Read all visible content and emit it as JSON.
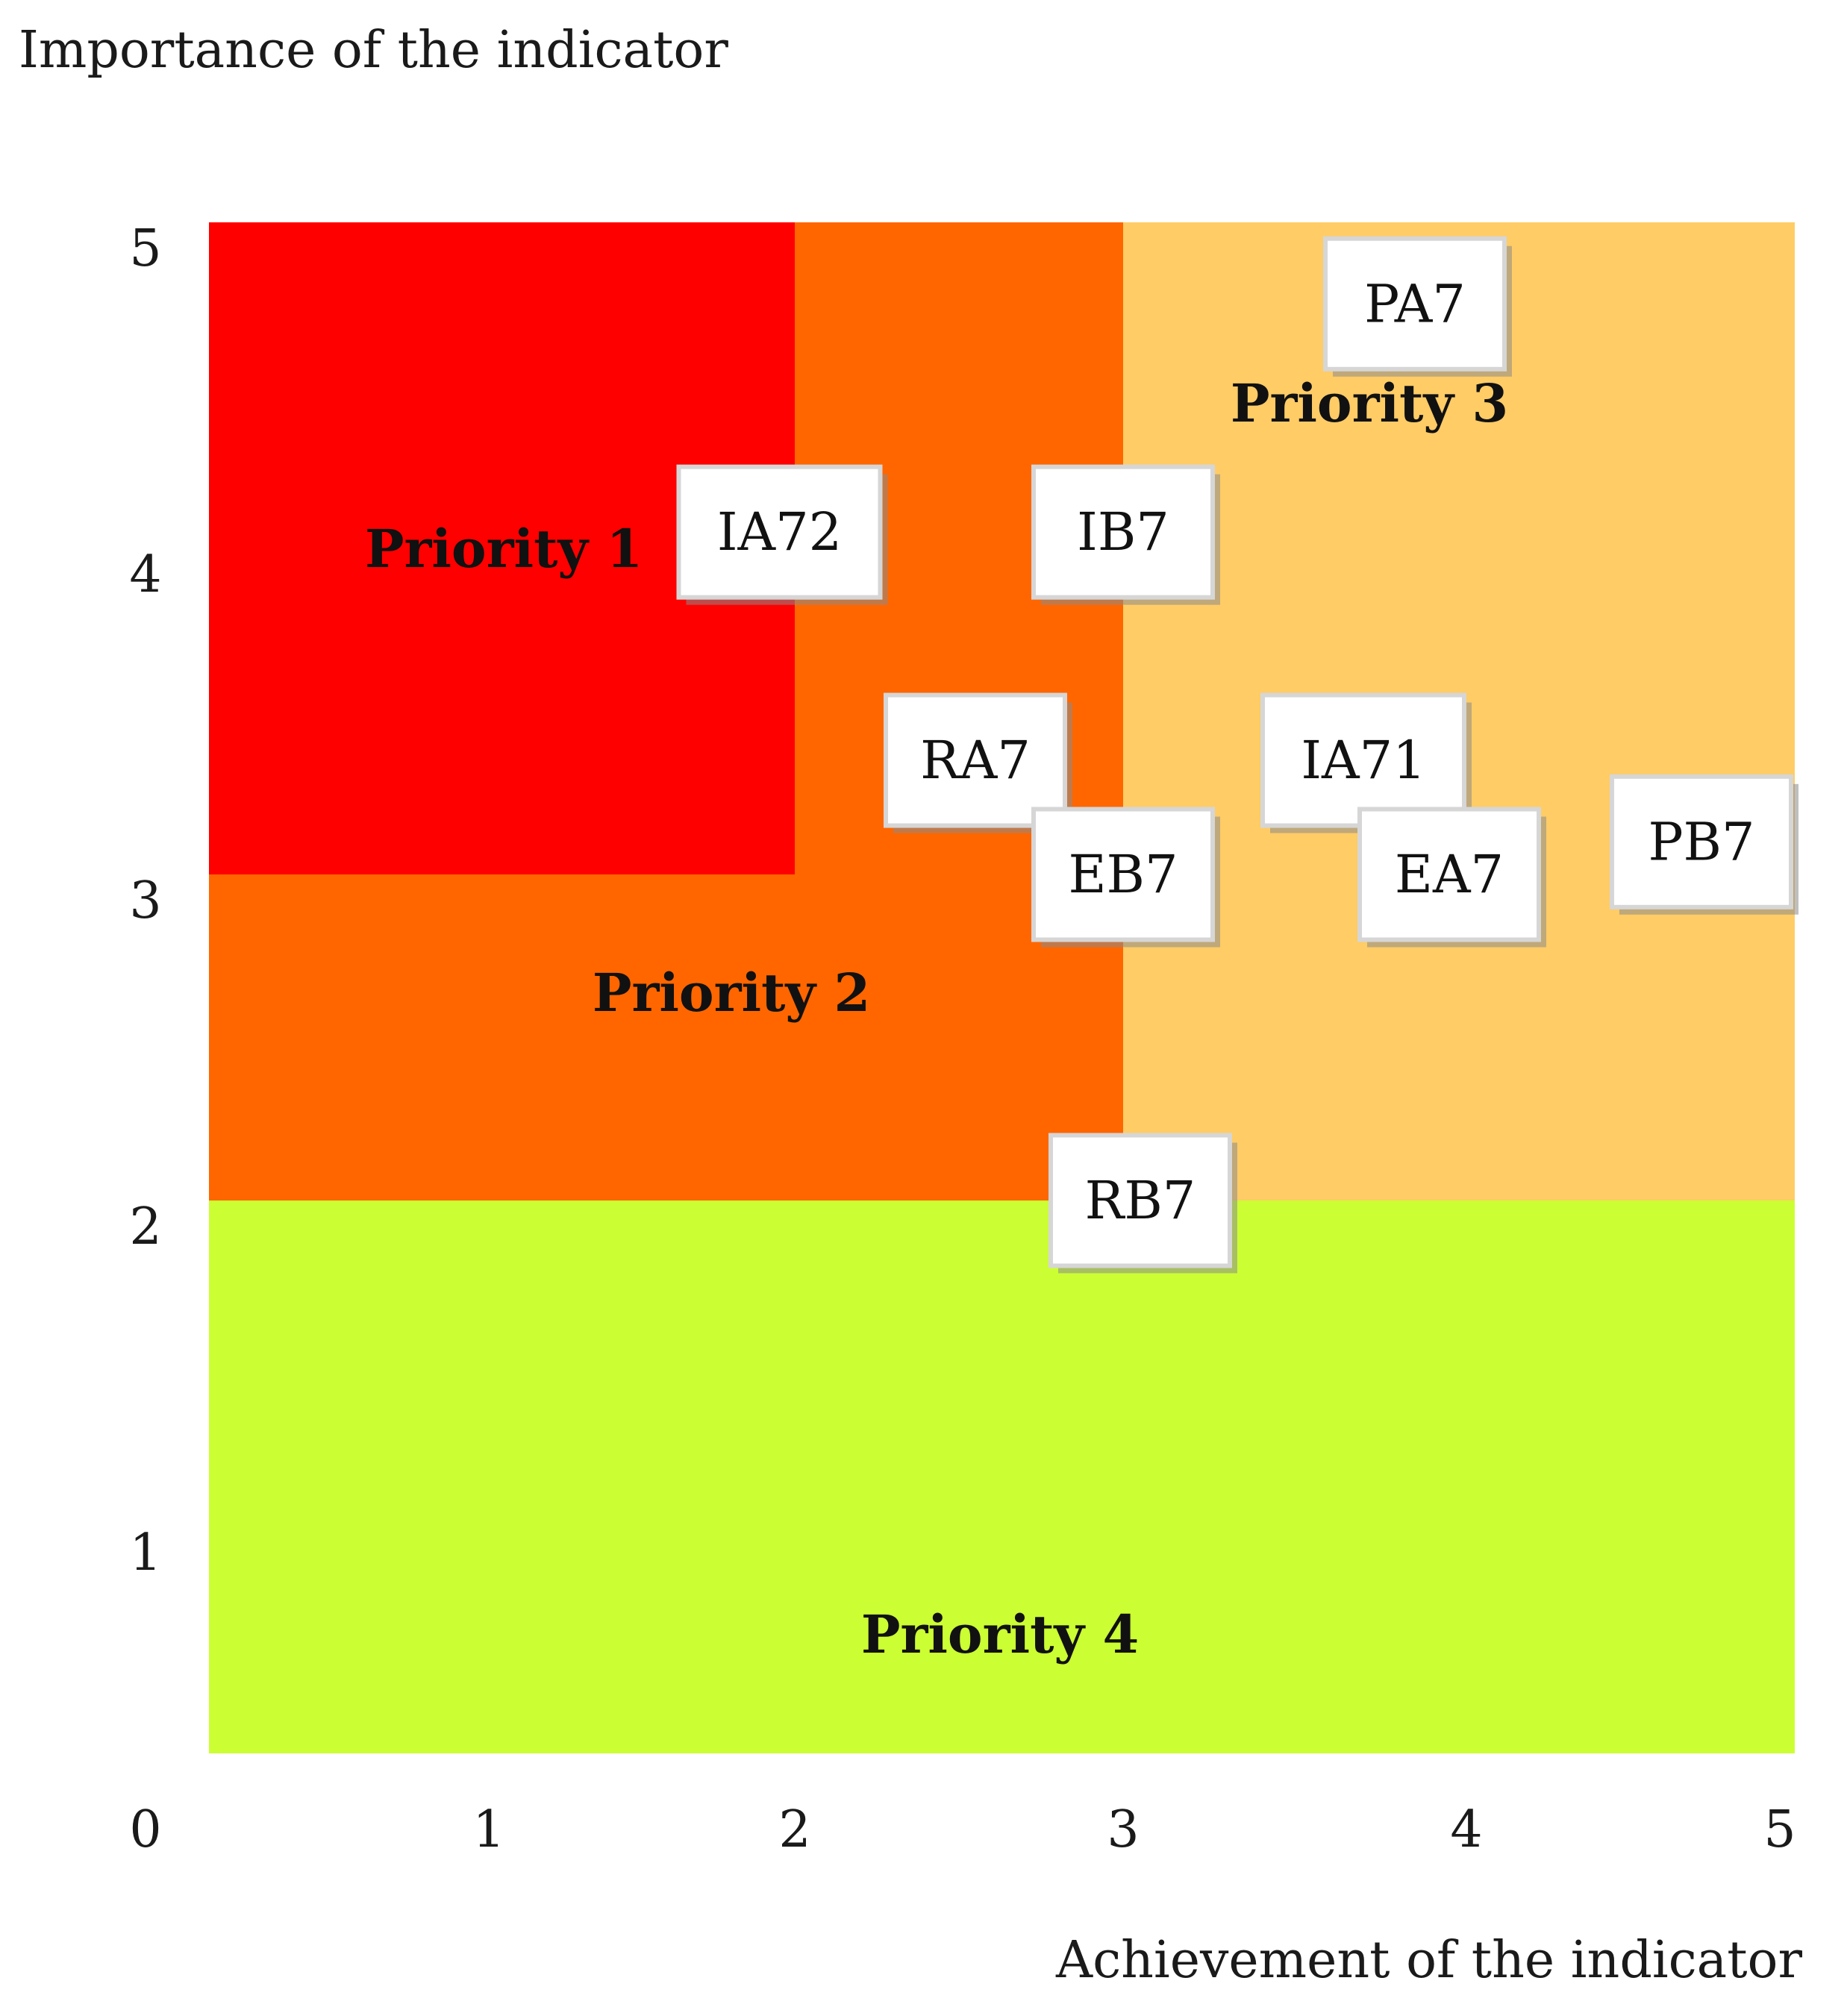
{
  "chart_data": {
    "type": "scatter",
    "xlabel": "Achievement of the indicator",
    "ylabel": "Importance of the indicator",
    "xlim": [
      0,
      5
    ],
    "ylim": [
      0,
      5
    ],
    "x_ticks": [
      "0",
      "1",
      "2",
      "3",
      "4",
      "5"
    ],
    "y_ticks": [
      "1",
      "2",
      "3",
      "4",
      "5"
    ],
    "zones": [
      {
        "label": "Priority 1",
        "color": "#ff0000",
        "x": [
          0,
          2
        ],
        "y": [
          3,
          5
        ]
      },
      {
        "label": "Priority 2",
        "color": "#ff6600",
        "x": [
          0,
          3
        ],
        "y": [
          2,
          5
        ]
      },
      {
        "label": "Priority 3",
        "color": "#ffcc66",
        "x": [
          3,
          5
        ],
        "y": [
          2,
          5
        ]
      },
      {
        "label": "Priority 4",
        "color": "#ccff33",
        "x": [
          0,
          5
        ],
        "y": [
          0,
          2
        ]
      }
    ],
    "points": [
      {
        "label": "PA7",
        "x": 3.85,
        "y": 4.75
      },
      {
        "label": "IA72",
        "x": 1.95,
        "y": 4.05
      },
      {
        "label": "IB7",
        "x": 3.0,
        "y": 4.05
      },
      {
        "label": "RA7",
        "x": 2.55,
        "y": 3.35
      },
      {
        "label": "IA71",
        "x": 3.7,
        "y": 3.35
      },
      {
        "label": "EB7",
        "x": 3.0,
        "y": 3.0
      },
      {
        "label": "EA7",
        "x": 3.95,
        "y": 3.0
      },
      {
        "label": "PB7",
        "x": 4.75,
        "y": 3.1
      },
      {
        "label": "RB7",
        "x": 3.05,
        "y": 2.0
      }
    ]
  }
}
